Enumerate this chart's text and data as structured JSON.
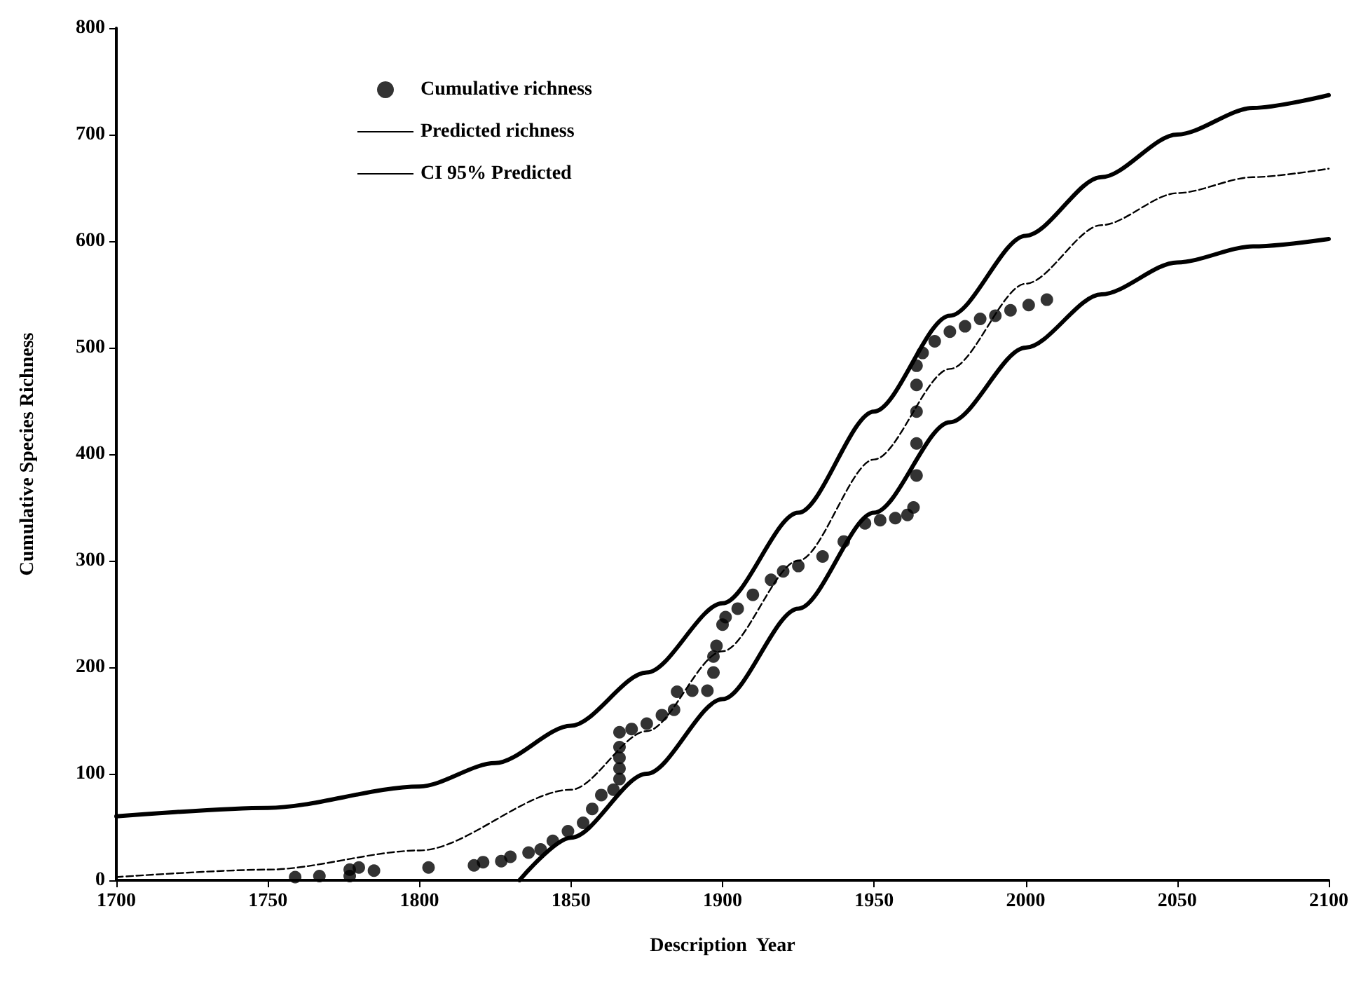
{
  "chart_data": {
    "type": "scatter",
    "xlabel": "Description  Year",
    "ylabel": "Cumulative Species Richness",
    "xlim": [
      1700,
      2100
    ],
    "xticks": [
      1700,
      1750,
      1800,
      1850,
      1900,
      1950,
      2000,
      2050,
      2100
    ],
    "ylim": [
      0,
      800
    ],
    "yticks": [
      0,
      100,
      200,
      300,
      400,
      500,
      600,
      700,
      800
    ],
    "grid": false,
    "legend": "top left",
    "series": [
      {
        "name": "Cumulative richness",
        "marker": "circle",
        "color": "#000000",
        "x": [
          1759,
          1767,
          1777,
          1777,
          1780,
          1785,
          1803,
          1818,
          1821,
          1827,
          1830,
          1836,
          1840,
          1844,
          1849,
          1854,
          1857,
          1860,
          1864,
          1866,
          1866,
          1866,
          1866,
          1866,
          1870,
          1875,
          1880,
          1884,
          1885,
          1890,
          1895,
          1897,
          1897,
          1898,
          1900,
          1901,
          1905,
          1910,
          1916,
          1920,
          1925,
          1933,
          1940,
          1947,
          1952,
          1957,
          1961,
          1963,
          1964,
          1964,
          1964,
          1964,
          1964,
          1966,
          1970,
          1975,
          1980,
          1985,
          1990,
          1995,
          2001,
          2007
        ],
        "values": [
          3,
          4,
          4,
          10,
          12,
          9,
          12,
          14,
          17,
          18,
          22,
          26,
          29,
          37,
          46,
          54,
          67,
          80,
          85,
          95,
          105,
          115,
          125,
          139,
          142,
          147,
          155,
          160,
          177,
          178,
          178,
          195,
          210,
          220,
          240,
          247,
          255,
          268,
          282,
          290,
          295,
          304,
          318,
          335,
          338,
          340,
          343,
          350,
          380,
          410,
          440,
          465,
          483,
          495,
          506,
          515,
          520,
          527,
          530,
          535,
          540,
          545
        ]
      },
      {
        "name": "Predicted richness",
        "type": "line",
        "marker": "none",
        "line_style": "dashed",
        "color": "#000000",
        "x": [
          1700,
          1750,
          1800,
          1850,
          1875,
          1900,
          1925,
          1950,
          1975,
          2000,
          2025,
          2050,
          2075,
          2100
        ],
        "values": [
          3,
          10,
          28,
          85,
          140,
          215,
          300,
          395,
          480,
          560,
          615,
          645,
          660,
          668
        ]
      },
      {
        "name": "CI 95% Predicted",
        "type": "line",
        "marker": "none",
        "line_style": "solid",
        "color": "#000000",
        "x": [
          1700,
          1750,
          1800,
          1825,
          1850,
          1875,
          1900,
          1925,
          1950,
          1975,
          2000,
          2025,
          2050,
          2075,
          2100
        ],
        "values": [
          60,
          68,
          88,
          110,
          145,
          195,
          260,
          345,
          440,
          530,
          605,
          660,
          700,
          725,
          737
        ]
      },
      {
        "type": "line",
        "marker": "none",
        "line_style": "solid",
        "color": "#000000",
        "x": [
          1833,
          1850,
          1875,
          1900,
          1925,
          1950,
          1975,
          2000,
          2025,
          2050,
          2075,
          2100
        ],
        "values": [
          0,
          40,
          100,
          170,
          255,
          345,
          430,
          500,
          550,
          580,
          595,
          602
        ]
      }
    ]
  }
}
